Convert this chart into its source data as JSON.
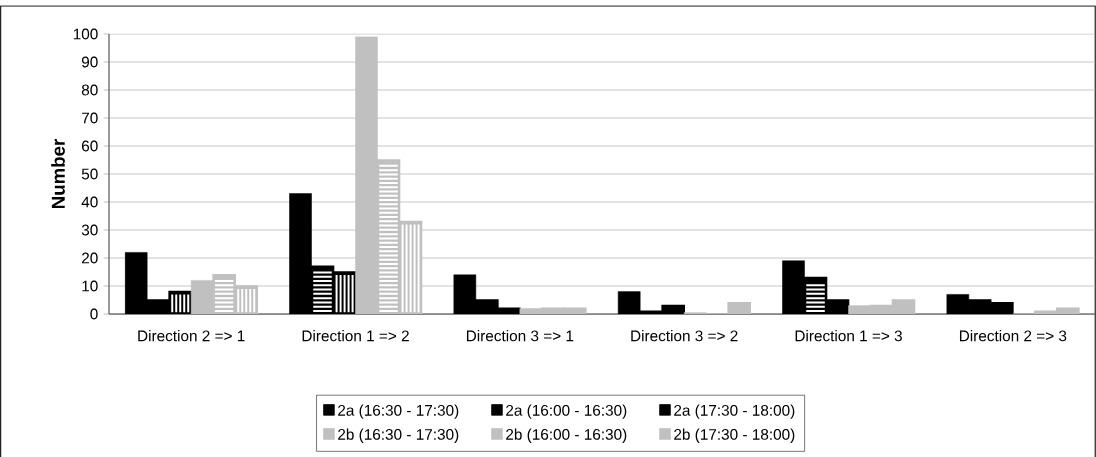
{
  "chart_data": {
    "type": "bar",
    "ylabel": "Number",
    "categories": [
      "Direction 2 => 1",
      "Direction 1 => 2",
      "Direction 3 => 1",
      "Direction 3 => 2",
      "Direction 1 => 3",
      "Direction 2 => 3"
    ],
    "series": [
      {
        "name": "2a (16:30 - 17:30)",
        "color": "#000000",
        "values": [
          22,
          43,
          14,
          8,
          19,
          7
        ]
      },
      {
        "name": "2a (16:00 - 16:30)",
        "color": "#000000",
        "values": [
          5,
          17,
          5,
          1,
          13,
          5
        ]
      },
      {
        "name": "2a (17:30 - 18:00)",
        "color": "#000000",
        "values": [
          8,
          15,
          2,
          3,
          5,
          4
        ]
      },
      {
        "name": "2b (16:30 - 17:30)",
        "color": "#c0c0c0",
        "values": [
          12,
          99,
          2,
          0.5,
          3,
          0
        ]
      },
      {
        "name": "2b (16:00 - 16:30)",
        "color": "#c0c0c0",
        "values": [
          14,
          55,
          2,
          0,
          3,
          1
        ]
      },
      {
        "name": "2b (17:30 - 18:00)",
        "color": "#c0c0c0",
        "values": [
          10,
          33,
          2,
          4,
          5,
          2
        ]
      }
    ],
    "ylim": [
      0,
      100
    ],
    "yticks": [
      0,
      10,
      20,
      30,
      40,
      50,
      60,
      70,
      80,
      90,
      100
    ],
    "grid": "y",
    "legend": "bottom"
  }
}
